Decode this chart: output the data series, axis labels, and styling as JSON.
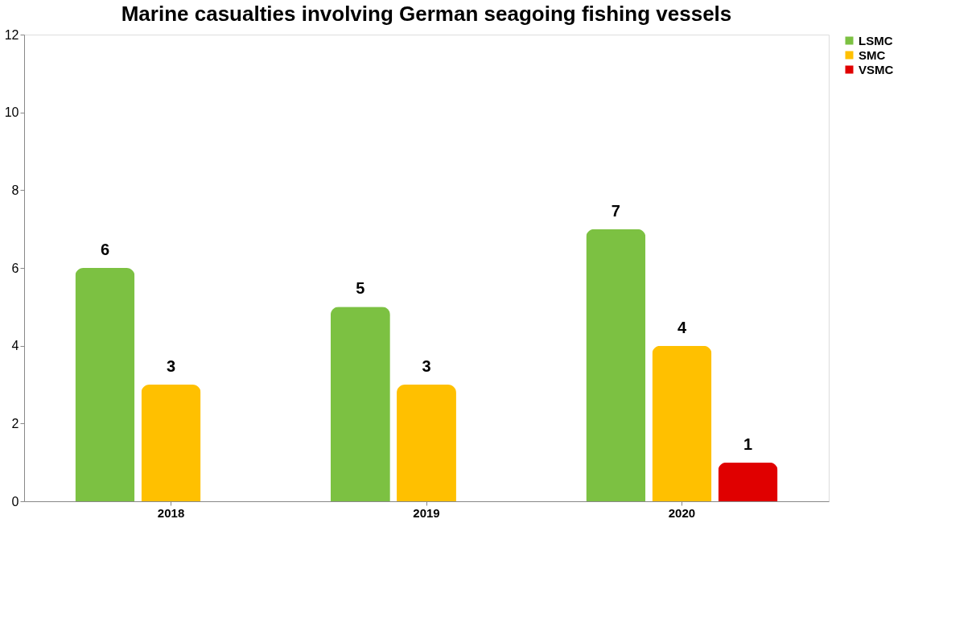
{
  "chart_data": {
    "type": "bar",
    "title": "Marine casualties involving German seagoing fishing vessels",
    "categories": [
      "2018",
      "2019",
      "2020"
    ],
    "series": [
      {
        "name": "LSMC",
        "color": "#7cc142",
        "values": [
          6,
          5,
          7
        ]
      },
      {
        "name": "SMC",
        "color": "#ffc000",
        "values": [
          3,
          3,
          4
        ]
      },
      {
        "name": "VSMC",
        "color": "#e00000",
        "values": [
          null,
          null,
          1
        ]
      }
    ],
    "ylim": [
      0,
      12
    ],
    "yticks": [
      0,
      2,
      4,
      6,
      8,
      10,
      12
    ],
    "grid": false,
    "legend": "right",
    "data_labels": true
  }
}
